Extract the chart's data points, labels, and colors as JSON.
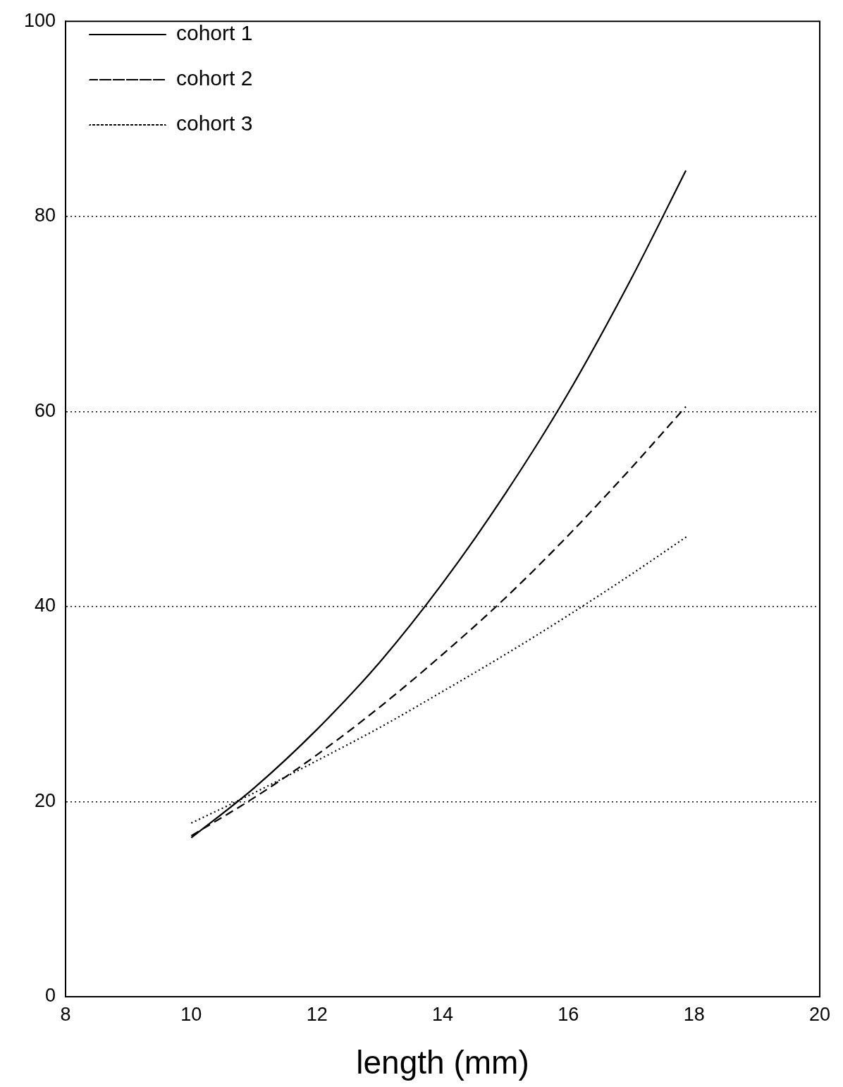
{
  "chart_data": {
    "type": "line",
    "xlabel": "length (mm)",
    "x": [
      10,
      11,
      12,
      13,
      14,
      15,
      16,
      17,
      17.87
    ],
    "xlim": [
      8,
      20
    ],
    "xticks": [
      8,
      10,
      12,
      14,
      16,
      18,
      20
    ],
    "ylim": [
      0,
      100
    ],
    "yticks": [
      0,
      20,
      40,
      60,
      80,
      100
    ],
    "grid": "y",
    "legend": "top left",
    "marker": "none",
    "series": [
      {
        "name": "cohort 1",
        "color": "#000000",
        "line_style": "solid",
        "values": [
          16.3,
          21.4,
          27.4,
          34.3,
          42.4,
          51.6,
          61.9,
          73.6,
          84.7
        ]
      },
      {
        "name": "cohort 2",
        "color": "#000000",
        "line_style": "dashed",
        "values": [
          16.5,
          20.4,
          24.8,
          29.7,
          35.1,
          40.9,
          47.3,
          54.2,
          60.5
        ]
      },
      {
        "name": "cohort 3",
        "color": "#000000",
        "line_style": "dotted",
        "x": [
          10,
          11,
          12,
          13,
          14,
          15,
          16,
          17,
          17.89
        ],
        "values": [
          17.8,
          20.9,
          24.2,
          27.6,
          31.3,
          35.1,
          39.1,
          43.3,
          47.2
        ]
      }
    ]
  }
}
